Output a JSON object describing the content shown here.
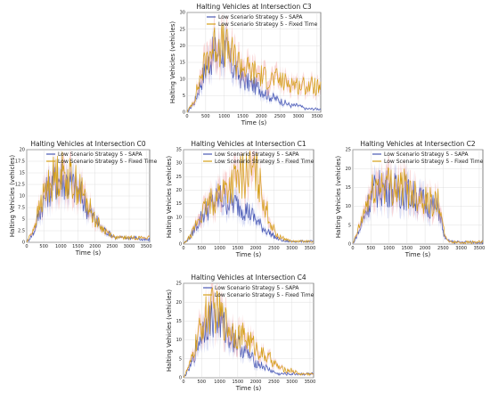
{
  "colors": {
    "sapa": "#4a5ab5",
    "fixed": "#d4a017",
    "band_sapa": "#aab4e8",
    "band_fixed": "#f4a6a6",
    "grid": "#d8d8d8"
  },
  "chart_data": [
    {
      "type": "line",
      "id": "C3",
      "title": "Halting Vehicles at Intersection C3",
      "xlabel": "Time (s)",
      "ylabel": "Halting Vehicles (vehicles)",
      "xlim": [
        0,
        3600
      ],
      "ylim": [
        0,
        30
      ],
      "xticks": [
        0,
        500,
        1000,
        1500,
        2000,
        2500,
        3000,
        3500
      ],
      "yticks": [
        0,
        5,
        10,
        15,
        20,
        25,
        30
      ],
      "grid": true,
      "legend": "top",
      "series": [
        {
          "name": "Low Scenario Strategy 5 - SAPA",
          "color": "#4a5ab5",
          "x": [
            0,
            200,
            400,
            600,
            800,
            1000,
            1200,
            1400,
            1600,
            1800,
            2000,
            2200,
            2400,
            2600,
            2800,
            3000,
            3200,
            3400,
            3600
          ],
          "y": [
            0,
            3,
            10,
            16,
            18,
            19,
            14,
            11,
            9,
            8,
            7,
            5,
            4,
            3,
            2,
            2,
            1,
            1,
            1
          ]
        },
        {
          "name": "Low Scenario Strategy 5 - Fixed Time",
          "color": "#d4a017",
          "x": [
            0,
            200,
            400,
            600,
            800,
            1000,
            1200,
            1400,
            1600,
            1800,
            2000,
            2200,
            2400,
            2600,
            2800,
            3000,
            3200,
            3400,
            3600
          ],
          "y": [
            0,
            4,
            12,
            18,
            21,
            20,
            17,
            15,
            13,
            12,
            11,
            10,
            10,
            9,
            9,
            8,
            8,
            8,
            7
          ]
        }
      ]
    },
    {
      "type": "line",
      "id": "C0",
      "title": "Halting Vehicles at Intersection C0",
      "xlabel": "Time (s)",
      "ylabel": "Halting Vehicles (vehicles)",
      "xlim": [
        0,
        3600
      ],
      "ylim": [
        0,
        20
      ],
      "xticks": [
        0,
        500,
        1000,
        1500,
        2000,
        2500,
        3000,
        3500
      ],
      "yticks": [
        0,
        2.5,
        5.0,
        7.5,
        10.0,
        12.5,
        15.0,
        17.5,
        20.0
      ],
      "grid": true,
      "legend": "top",
      "series": [
        {
          "name": "Low Scenario Strategy 5 - SAPA",
          "color": "#4a5ab5",
          "x": [
            0,
            200,
            400,
            600,
            800,
            1000,
            1200,
            1400,
            1600,
            1800,
            2000,
            2200,
            2400,
            2600,
            2800,
            3000,
            3200,
            3400,
            3600
          ],
          "y": [
            0,
            2,
            7,
            11,
            13,
            14,
            13,
            12,
            10,
            7,
            5,
            3,
            2,
            1,
            1,
            1,
            1,
            0.5,
            0.5
          ]
        },
        {
          "name": "Low Scenario Strategy 5 - Fixed Time",
          "color": "#d4a017",
          "x": [
            0,
            200,
            400,
            600,
            800,
            1000,
            1200,
            1400,
            1600,
            1800,
            2000,
            2200,
            2400,
            2600,
            2800,
            3000,
            3200,
            3400,
            3600
          ],
          "y": [
            0,
            3,
            8,
            12,
            14,
            15,
            14,
            13,
            11,
            8,
            5,
            3,
            2,
            1,
            1,
            1,
            1,
            1,
            1
          ]
        }
      ]
    },
    {
      "type": "line",
      "id": "C1",
      "title": "Halting Vehicles at Intersection C1",
      "xlabel": "Time (s)",
      "ylabel": "Halting Vehicles (vehicles)",
      "xlim": [
        0,
        3600
      ],
      "ylim": [
        0,
        35
      ],
      "xticks": [
        0,
        500,
        1000,
        1500,
        2000,
        2500,
        3000,
        3500
      ],
      "yticks": [
        0,
        5,
        10,
        15,
        20,
        25,
        30,
        35
      ],
      "grid": true,
      "legend": "top",
      "series": [
        {
          "name": "Low Scenario Strategy 5 - SAPA",
          "color": "#4a5ab5",
          "x": [
            0,
            200,
            400,
            600,
            800,
            1000,
            1200,
            1400,
            1600,
            1800,
            2000,
            2200,
            2400,
            2600,
            2800,
            3000,
            3200,
            3400,
            3600
          ],
          "y": [
            0,
            3,
            8,
            12,
            15,
            17,
            16,
            15,
            14,
            12,
            9,
            6,
            4,
            2,
            1,
            1,
            1,
            1,
            1
          ]
        },
        {
          "name": "Low Scenario Strategy 5 - Fixed Time",
          "color": "#d4a017",
          "x": [
            0,
            200,
            400,
            600,
            800,
            1000,
            1200,
            1400,
            1600,
            1800,
            2000,
            2200,
            2400,
            2600,
            2800,
            3000,
            3200,
            3400,
            3600
          ],
          "y": [
            0,
            3,
            9,
            13,
            16,
            19,
            21,
            23,
            25,
            27,
            26,
            18,
            8,
            3,
            2,
            1,
            1,
            1,
            1
          ]
        }
      ]
    },
    {
      "type": "line",
      "id": "C2",
      "title": "Halting Vehicles at Intersection C2",
      "xlabel": "Time (s)",
      "ylabel": "Halting Vehicles (vehicles)",
      "xlim": [
        0,
        3600
      ],
      "ylim": [
        0,
        25
      ],
      "xticks": [
        0,
        500,
        1000,
        1500,
        2000,
        2500,
        3000,
        3500
      ],
      "yticks": [
        0,
        5,
        10,
        15,
        20,
        25
      ],
      "grid": true,
      "legend": "top",
      "series": [
        {
          "name": "Low Scenario Strategy 5 - SAPA",
          "color": "#4a5ab5",
          "x": [
            0,
            200,
            400,
            600,
            800,
            1000,
            1200,
            1400,
            1600,
            1800,
            2000,
            2200,
            2400,
            2500,
            2600,
            2800,
            3000,
            3200,
            3400,
            3600
          ],
          "y": [
            0,
            4,
            10,
            14,
            15,
            15,
            14,
            14,
            13,
            12,
            11,
            10,
            9,
            3,
            1,
            0.5,
            0.5,
            0.5,
            0.5,
            0.5
          ]
        },
        {
          "name": "Low Scenario Strategy 5 - Fixed Time",
          "color": "#d4a017",
          "x": [
            0,
            200,
            400,
            600,
            800,
            1000,
            1200,
            1400,
            1600,
            1800,
            2000,
            2200,
            2400,
            2500,
            2600,
            2800,
            3000,
            3200,
            3400,
            3600
          ],
          "y": [
            0,
            5,
            11,
            15,
            16,
            16,
            15,
            15,
            14,
            13,
            12,
            11,
            11,
            4,
            1,
            0.5,
            0.5,
            0.5,
            0.5,
            0.5
          ]
        }
      ]
    },
    {
      "type": "line",
      "id": "C4",
      "title": "Halting Vehicles at Intersection C4",
      "xlabel": "Time (s)",
      "ylabel": "Halting Vehicles (vehicles)",
      "xlim": [
        0,
        3600
      ],
      "ylim": [
        0,
        25
      ],
      "xticks": [
        0,
        500,
        1000,
        1500,
        2000,
        2500,
        3000,
        3500
      ],
      "yticks": [
        0,
        5,
        10,
        15,
        20,
        25
      ],
      "grid": true,
      "legend": "top",
      "series": [
        {
          "name": "Low Scenario Strategy 5 - SAPA",
          "color": "#4a5ab5",
          "x": [
            0,
            200,
            400,
            600,
            800,
            1000,
            1200,
            1400,
            1600,
            1800,
            2000,
            2200,
            2400,
            2600,
            2800,
            3000,
            3200,
            3400,
            3600
          ],
          "y": [
            0,
            3,
            9,
            14,
            16,
            15,
            12,
            10,
            8,
            6,
            4,
            3,
            2,
            1,
            1,
            1,
            1,
            1,
            1
          ]
        },
        {
          "name": "Low Scenario Strategy 5 - Fixed Time",
          "color": "#d4a017",
          "x": [
            0,
            200,
            400,
            600,
            800,
            1000,
            1200,
            1400,
            1600,
            1800,
            2000,
            2200,
            2400,
            2600,
            2800,
            3000,
            3200,
            3400,
            3600
          ],
          "y": [
            0,
            4,
            11,
            16,
            18,
            17,
            14,
            12,
            11,
            10,
            8,
            6,
            5,
            3,
            2,
            2,
            1,
            1,
            1
          ]
        }
      ]
    }
  ]
}
